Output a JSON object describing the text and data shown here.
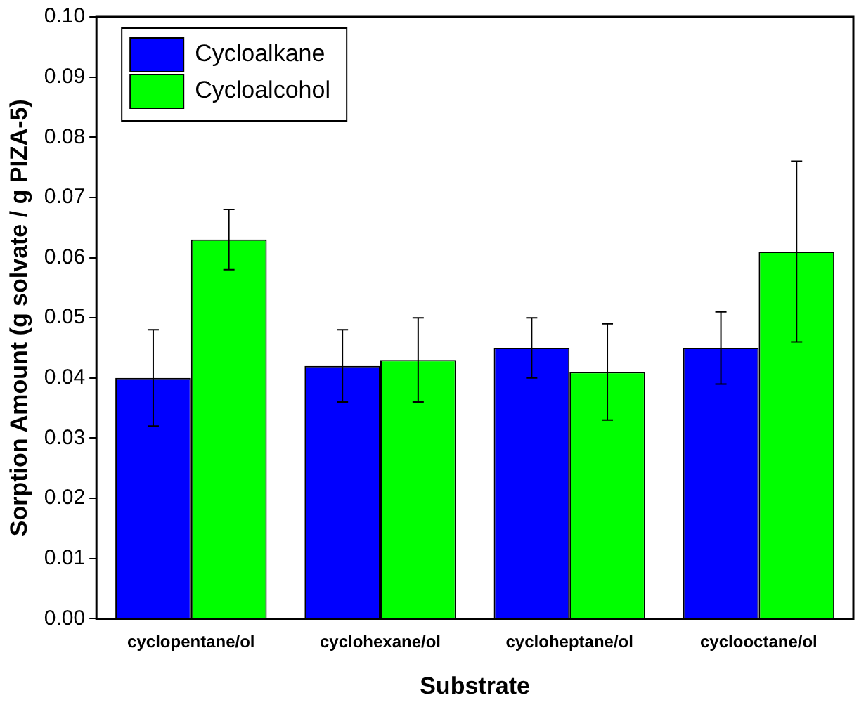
{
  "chart_data": {
    "type": "bar",
    "xlabel": "Substrate",
    "ylabel": "Sorption Amount (g solvate / g PIZA-5)",
    "categories": [
      "cyclopentane/ol",
      "cyclohexane/ol",
      "cycloheptane/ol",
      "cyclooctane/ol"
    ],
    "series": [
      {
        "name": "Cycloalkane",
        "color": "#0000ff",
        "values": [
          0.04,
          0.042,
          0.045,
          0.045
        ],
        "errors": [
          0.008,
          0.006,
          0.005,
          0.006
        ]
      },
      {
        "name": "Cycloalcohol",
        "color": "#00ff00",
        "values": [
          0.063,
          0.043,
          0.041,
          0.061
        ],
        "errors": [
          0.005,
          0.007,
          0.008,
          0.015
        ]
      }
    ],
    "ylim": [
      0,
      0.1
    ],
    "yticks": [
      {
        "value": 0,
        "label": "0.00"
      },
      0.01,
      0.02,
      0.03,
      0.04,
      0.05,
      0.06,
      0.07,
      0.08,
      0.09,
      {
        "value": 0.1,
        "label": "0.10"
      }
    ],
    "grid": false,
    "legend": "top left"
  }
}
